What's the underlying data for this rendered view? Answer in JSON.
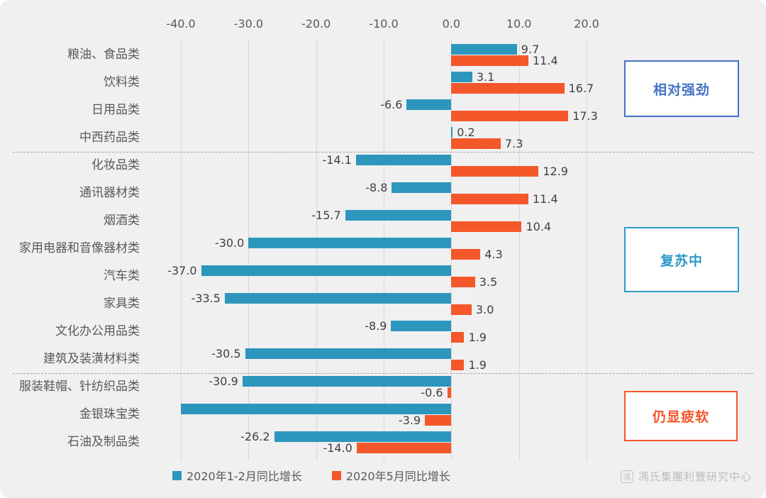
{
  "chart_data": {
    "type": "bar",
    "orientation": "horizontal",
    "title": "",
    "xlim": [
      -40,
      20
    ],
    "x_ticks": [
      "-40.0",
      "-30.0",
      "-20.0",
      "-10.0",
      "0.0",
      "10.0",
      "20.0"
    ],
    "grid": true,
    "legend_position": "bottom",
    "categories": [
      "粮油、食品类",
      "饮料类",
      "日用品类",
      "中西药品类",
      "化妆品类",
      "通讯器材类",
      "烟酒类",
      "家用电器和音像器材类",
      "汽车类",
      "家具类",
      "文化办公用品类",
      "建筑及装潢材料类",
      "服装鞋帽、针纺织品类",
      "金银珠宝类",
      "石油及制品类"
    ],
    "series": [
      {
        "name": "2020年1-2月同比增长",
        "color": "#2d96bd",
        "values": [
          9.7,
          3.1,
          -6.6,
          0.2,
          -14.1,
          -8.8,
          -15.7,
          -30.0,
          -37.0,
          -33.5,
          -8.9,
          -30.5,
          -30.9,
          -40.0,
          -26.2
        ],
        "labels": [
          "9.7",
          "3.1",
          "-6.6",
          "0.2",
          "-14.1",
          "-8.8",
          "-15.7",
          "-30.0",
          "-37.0",
          "-33.5",
          "-8.9",
          "-30.5",
          "-30.9",
          "",
          "-26.2"
        ]
      },
      {
        "name": "2020年5月同比增长",
        "color": "#f4572a",
        "values": [
          11.4,
          16.7,
          17.3,
          7.3,
          12.9,
          11.4,
          10.4,
          4.3,
          3.5,
          3.0,
          1.9,
          1.9,
          -0.6,
          -3.9,
          -14.0
        ],
        "labels": [
          "11.4",
          "16.7",
          "17.3",
          "7.3",
          "12.9",
          "11.4",
          "10.4",
          "4.3",
          "3.5",
          "3.0",
          "1.9",
          "1.9",
          "-0.6",
          "-3.9",
          "-14.0"
        ]
      }
    ],
    "group_separators_after_category_index": [
      3,
      11
    ],
    "notes": "金银珠宝类 blue bar is clipped at the -40 axis minimum and shows no data label"
  },
  "annotations": [
    {
      "label": "相对强劲",
      "color": "#4472c4"
    },
    {
      "label": "复苏中",
      "color": "#2e9ac6"
    },
    {
      "label": "仍显疲软",
      "color": "#f4572a"
    }
  ],
  "legend": {
    "items": [
      {
        "label": "2020年1-2月同比增长",
        "color": "#2d96bd"
      },
      {
        "label": "2020年5月同比增长",
        "color": "#f4572a"
      }
    ]
  },
  "footer": {
    "logo_glyph": "馮",
    "source": "馮氏集團利豐研究中心"
  },
  "colors": {
    "background": "#f0f0f1",
    "grid": "#d8d8d8",
    "axis_text": "#595959",
    "category_text": "#595959",
    "value_text": "#3f3f3f",
    "separator": "#a3a3a3"
  }
}
